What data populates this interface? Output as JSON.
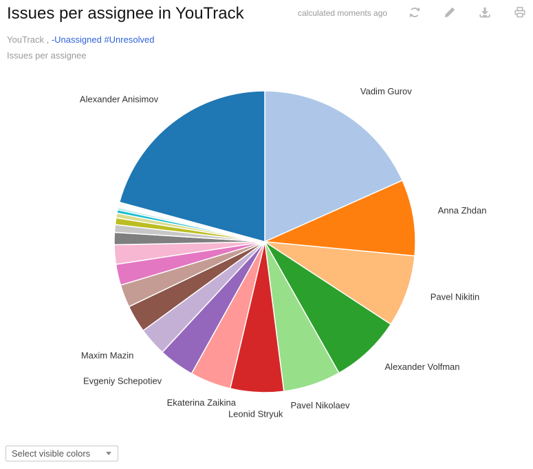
{
  "header": {
    "title": "Issues per assignee in YouTrack",
    "status": "calculated moments ago",
    "actions": [
      {
        "name": "refresh"
      },
      {
        "name": "edit"
      },
      {
        "name": "download"
      },
      {
        "name": "print"
      }
    ]
  },
  "subtitle": {
    "project": "YouTrack",
    "separator": " , ",
    "query_links": [
      "-Unassigned",
      "#Unresolved"
    ],
    "report_name": "Issues per assignee"
  },
  "chart_data": {
    "type": "pie",
    "title": "Issues per assignee",
    "legend_position": "labels-around-pie",
    "direction": "clockwise",
    "start_angle_deg": 0,
    "slices": [
      {
        "label": "Vadim Gurov",
        "color": "#aec7e8",
        "percent": 18.33
      },
      {
        "label": "Anna Zhdan",
        "color": "#ff7f0e",
        "percent": 8.17
      },
      {
        "label": "Pavel Nikitin",
        "color": "#ffbb78",
        "percent": 7.72
      },
      {
        "label": "Alexander Volfman",
        "color": "#2ca02c",
        "percent": 7.58
      },
      {
        "label": "Pavel Nikolaev",
        "color": "#98df8a",
        "percent": 6.17
      },
      {
        "label": "Leonid Stryuk",
        "color": "#d62728",
        "percent": 5.72
      },
      {
        "label": "Ekaterina Zaikina",
        "color": "#ff9896",
        "percent": 4.39
      },
      {
        "label": "Evgeniy Schepotiev",
        "color": "#9467bd",
        "percent": 3.83
      },
      {
        "label": "Maxim Mazin",
        "color": "#c5b0d5",
        "percent": 3.06
      },
      {
        "label": "",
        "color": "#8c564b",
        "percent": 2.94
      },
      {
        "label": "",
        "color": "#c49c94",
        "percent": 2.44
      },
      {
        "label": "",
        "color": "#e377c2",
        "percent": 2.25
      },
      {
        "label": "",
        "color": "#f7b6d2",
        "percent": 2.08
      },
      {
        "label": "",
        "color": "#7f7f7f",
        "percent": 1.31
      },
      {
        "label": "",
        "color": "#c7c7c7",
        "percent": 0.83
      },
      {
        "label": "",
        "color": "#bcbd22",
        "percent": 0.72
      },
      {
        "label": "",
        "color": "#dbdb8d",
        "percent": 0.5
      },
      {
        "label": "",
        "color": "#17becf",
        "percent": 0.36
      },
      {
        "label": "",
        "color": "#9edae5",
        "percent": 0.22
      },
      {
        "label": "",
        "color": "#1f77b4",
        "percent": 0.12
      },
      {
        "label": "",
        "color": "#aec7e8",
        "percent": 0.12
      },
      {
        "label": "",
        "color": "#ff7f0e",
        "percent": 0.12
      },
      {
        "label": "",
        "color": "#ffbb78",
        "percent": 0.12
      },
      {
        "label": "",
        "color": "#2ca02c",
        "percent": 0.12
      },
      {
        "label": "Alexander Anisimov",
        "color": "#1f77b4",
        "percent": 20.78
      }
    ]
  },
  "footer": {
    "color_filter_label": "Select visible colors"
  },
  "colors": {
    "link_blue": "#2f62d8",
    "muted_text": "#9a9a9a",
    "slice_label_text": "#333333",
    "icon_gray": "#b9b9b9"
  }
}
